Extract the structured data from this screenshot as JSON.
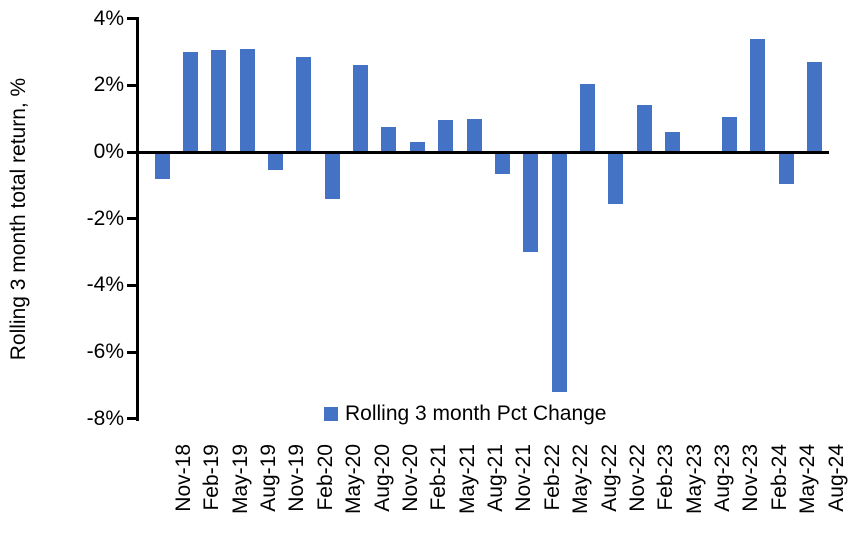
{
  "chart_data": {
    "type": "bar",
    "title": "",
    "xlabel": "",
    "ylabel": "Rolling 3 month total return, %",
    "categories": [
      "Nov-18",
      "Feb-19",
      "May-19",
      "Aug-19",
      "Nov-19",
      "Feb-20",
      "May-20",
      "Aug-20",
      "Nov-20",
      "Feb-21",
      "May-21",
      "Aug-21",
      "Nov-21",
      "Feb-22",
      "May-22",
      "Aug-22",
      "Nov-22",
      "Feb-23",
      "May-23",
      "Aug-23",
      "Nov-23",
      "Feb-24",
      "May-24",
      "Aug-24"
    ],
    "values": [
      -0.8,
      3.0,
      3.05,
      3.1,
      -0.55,
      2.85,
      -1.4,
      2.6,
      0.75,
      0.3,
      0.95,
      1.0,
      -0.65,
      -3.0,
      -7.2,
      2.05,
      -1.55,
      1.4,
      0.6,
      0.0,
      1.05,
      3.4,
      -0.95,
      2.7
    ],
    "ylim": [
      -8,
      4
    ],
    "ytick_step": 2,
    "yticks": [
      "4%",
      "2%",
      "0%",
      "-2%",
      "-4%",
      "-6%",
      "-8%"
    ],
    "grid": false,
    "legend": {
      "label": "Rolling 3 month Pct Change",
      "position": "bottom-center-inside"
    },
    "colors": {
      "bar": "#4472C4",
      "axis": "#000000",
      "text": "#000000",
      "background": "#FFFFFF"
    }
  }
}
